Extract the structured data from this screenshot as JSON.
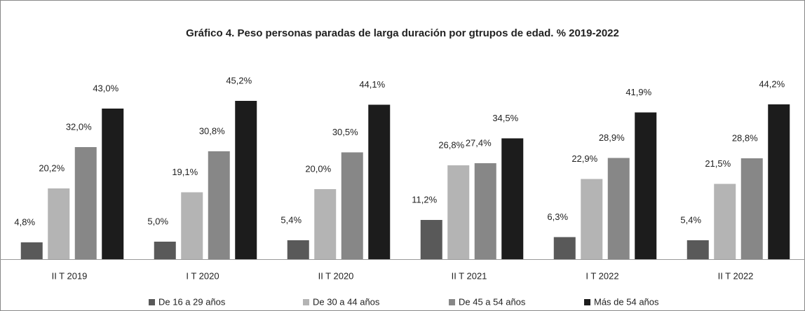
{
  "chart_data": {
    "type": "bar",
    "title": "Gráfico 4. Peso personas paradas de larga duración por gtrupos de edad. % 2019-2022",
    "categories": [
      "II T 2019",
      "I T 2020",
      "II T 2020",
      "II T 2021",
      "I T 2022",
      "II T 2022"
    ],
    "series": [
      {
        "name": "De 16 a 29 años",
        "color": "#595959",
        "values": [
          4.8,
          5.0,
          5.4,
          11.2,
          6.3,
          5.4
        ],
        "value_labels": [
          "4,8%",
          "5,0%",
          "5,4%",
          "11,2%",
          "6,3%",
          "5,4%"
        ]
      },
      {
        "name": "De 30 a 44 años",
        "color": "#b4b4b4",
        "values": [
          20.2,
          19.1,
          20.0,
          26.8,
          22.9,
          21.5
        ],
        "value_labels": [
          "20,2%",
          "19,1%",
          "20,0%",
          "26,8%",
          "22,9%",
          "21,5%"
        ]
      },
      {
        "name": "De 45 a 54 años",
        "color": "#878787",
        "values": [
          32.0,
          30.8,
          30.5,
          27.4,
          28.9,
          28.8
        ],
        "value_labels": [
          "32,0%",
          "30,8%",
          "30,5%",
          "27,4%",
          "28,9%",
          "28,8%"
        ]
      },
      {
        "name": "Más de 54 años",
        "color": "#1c1c1c",
        "values": [
          43.0,
          45.2,
          44.1,
          34.5,
          41.9,
          44.2
        ],
        "value_labels": [
          "43,0%",
          "45,2%",
          "44,1%",
          "34,5%",
          "41,9%",
          "44,2%"
        ]
      }
    ],
    "ylim": [
      0,
      50
    ],
    "legend": "bottom"
  }
}
